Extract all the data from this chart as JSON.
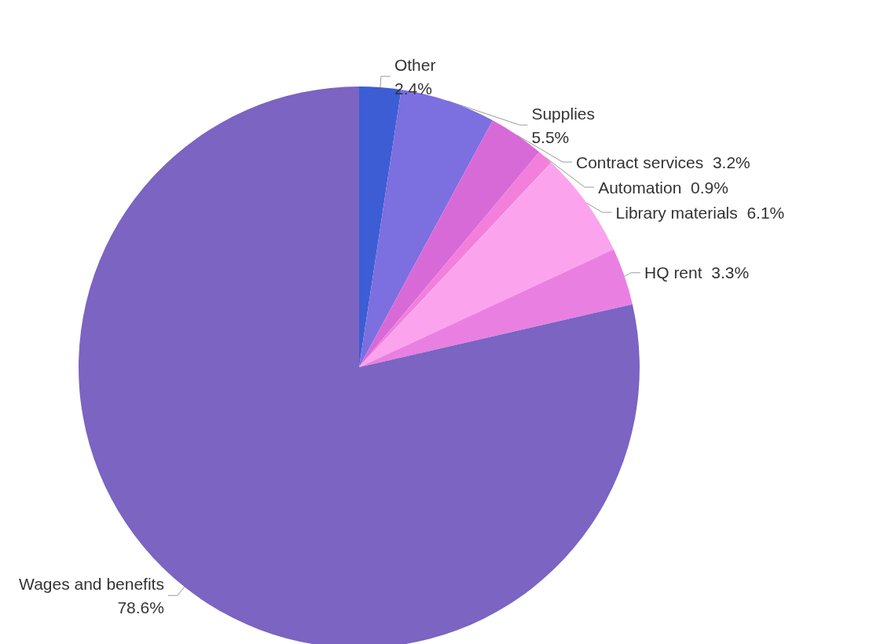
{
  "chart_data": {
    "type": "pie",
    "categories": [
      "Other",
      "Supplies",
      "Contract services",
      "Automation",
      "Library materials",
      "HQ rent",
      "Wages and benefits"
    ],
    "values": [
      2.4,
      5.5,
      3.2,
      0.9,
      6.1,
      3.3,
      78.6
    ],
    "colors": [
      "#3c5dd4",
      "#7c6fe0",
      "#d86ad8",
      "#f27fdc",
      "#fca3ee",
      "#ea7fe2",
      "#7b64c2"
    ],
    "value_labels": [
      "2.4%",
      "5.5%",
      "3.2%",
      "0.9%",
      "6.1%",
      "3.3%",
      "78.6%"
    ]
  }
}
